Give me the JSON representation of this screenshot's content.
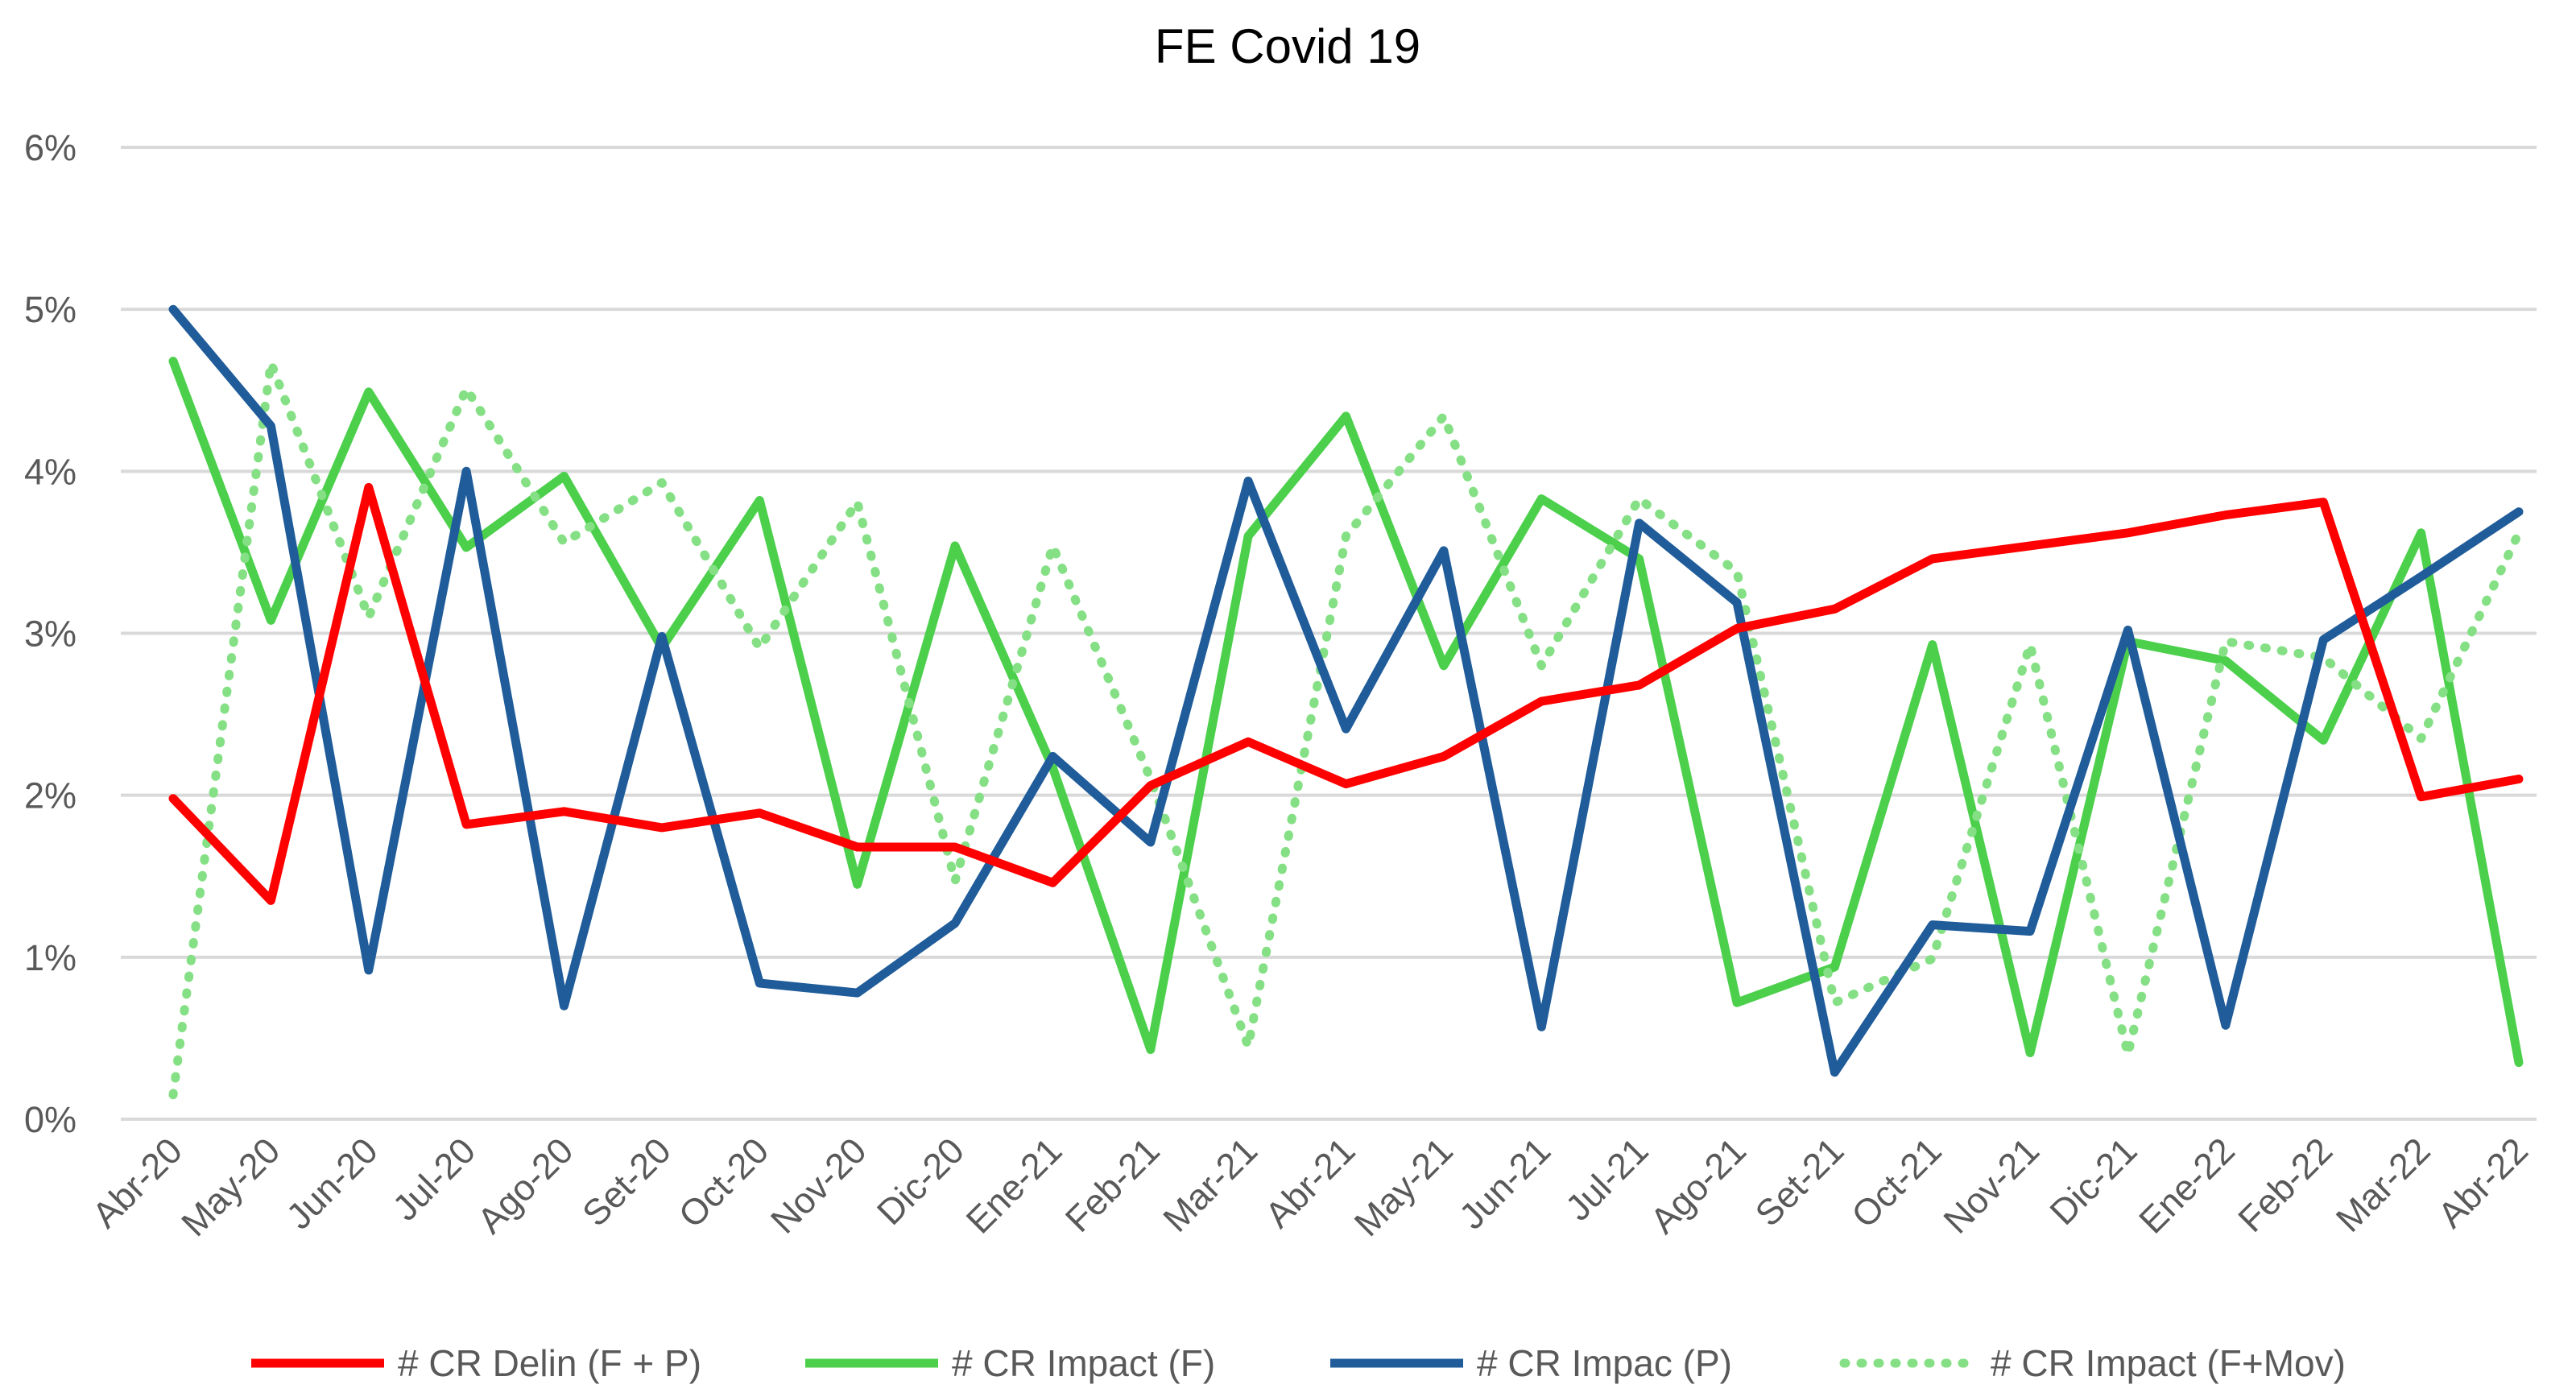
{
  "chart_data": {
    "type": "line",
    "title": "FE Covid 19",
    "xlabel": "",
    "ylabel": "",
    "ylim": [
      0,
      6
    ],
    "y_ticks": [
      "0%",
      "1%",
      "2%",
      "3%",
      "4%",
      "5%",
      "6%"
    ],
    "y_tick_values": [
      0,
      1,
      2,
      3,
      4,
      5,
      6
    ],
    "grid": true,
    "legend_position": "bottom",
    "categories": [
      "Abr-20",
      "May-20",
      "Jun-20",
      "Jul-20",
      "Ago-20",
      "Set-20",
      "Oct-20",
      "Nov-20",
      "Dic-20",
      "Ene-21",
      "Feb-21",
      "Mar-21",
      "Abr-21",
      "May-21",
      "Jun-21",
      "Jul-21",
      "Ago-21",
      "Set-21",
      "Oct-21",
      "Nov-21",
      "Dic-21",
      "Ene-22",
      "Feb-22",
      "Mar-22",
      "Abr-22"
    ],
    "series": [
      {
        "name": "# CR Delin (F + P)",
        "color": "#ff0000",
        "style": "solid",
        "values": [
          1.98,
          1.35,
          3.9,
          1.82,
          1.9,
          1.8,
          1.89,
          1.68,
          1.68,
          1.46,
          2.06,
          2.33,
          2.07,
          2.24,
          2.58,
          2.68,
          3.03,
          3.15,
          3.46,
          3.54,
          3.62,
          3.73,
          3.81,
          1.99,
          2.1
        ]
      },
      {
        "name": "# CR Impact (F)",
        "color": "#4cd04c",
        "style": "solid",
        "values": [
          4.68,
          3.08,
          4.49,
          3.53,
          3.97,
          2.91,
          3.82,
          1.45,
          3.54,
          2.17,
          0.43,
          3.6,
          4.34,
          2.8,
          3.83,
          3.46,
          0.72,
          0.94,
          2.93,
          0.41,
          2.95,
          2.83,
          2.34,
          3.62,
          0.35
        ]
      },
      {
        "name": "# CR Impac (P)",
        "color": "#1f5c99",
        "style": "solid",
        "values": [
          5.0,
          4.28,
          0.92,
          4.0,
          0.7,
          2.98,
          0.84,
          0.78,
          1.21,
          2.24,
          1.71,
          3.94,
          2.41,
          3.51,
          0.57,
          3.68,
          3.19,
          0.29,
          1.2,
          1.16,
          3.02,
          0.58,
          2.96,
          3.35,
          3.75
        ]
      },
      {
        "name": "# CR Impact (F+Mov)",
        "color": "#85e085",
        "style": "dotted",
        "values": [
          0.15,
          4.67,
          3.1,
          4.51,
          3.56,
          3.93,
          2.91,
          3.81,
          1.47,
          3.54,
          2.1,
          0.45,
          3.6,
          4.34,
          2.8,
          3.83,
          3.38,
          0.72,
          0.99,
          2.93,
          0.4,
          2.95,
          2.85,
          2.35,
          3.62
        ]
      }
    ]
  }
}
